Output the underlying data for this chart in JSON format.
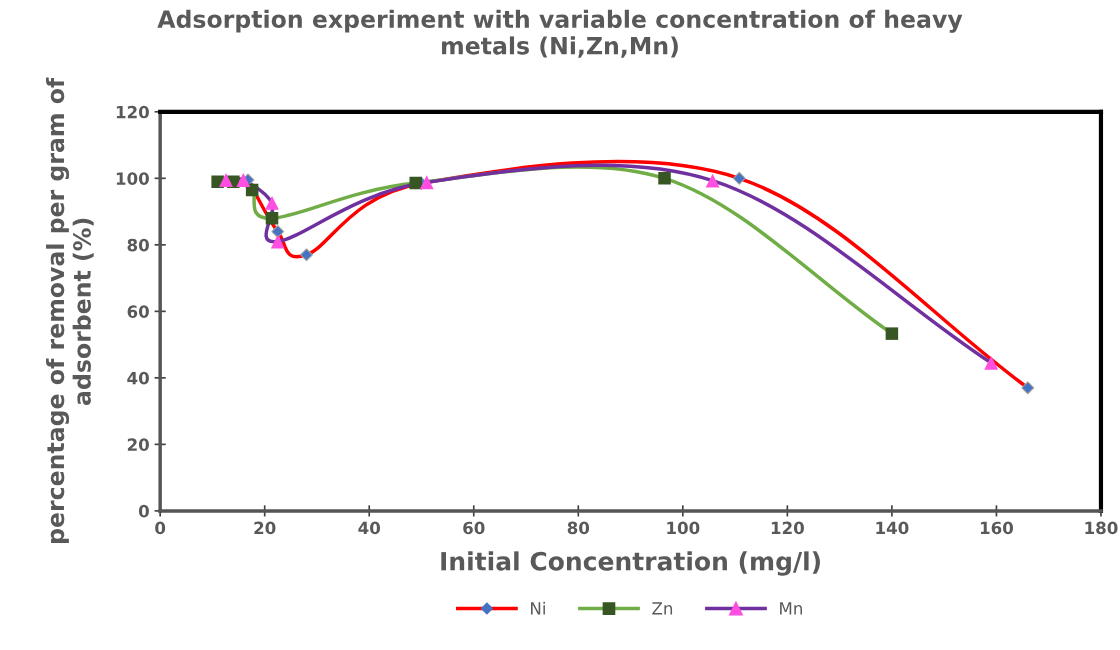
{
  "chart_data": {
    "type": "line",
    "title": "Adsorption experiment with variable concentration of heavy\nmetals (Ni,Zn,Mn)",
    "xlabel": "Initial Concentration (mg/l)",
    "ylabel": "percentage of removal per gram of\nadsorbent (%)",
    "xlim": [
      0,
      180
    ],
    "xticks": [
      0,
      20,
      40,
      60,
      80,
      100,
      120,
      140,
      160,
      180
    ],
    "ylim": [
      0,
      120
    ],
    "yticks": [
      0,
      20,
      40,
      60,
      80,
      100,
      120
    ],
    "grid": false,
    "legend": "bottom",
    "series": [
      {
        "name": "Ni",
        "color": "#ff0000",
        "marker": "diamond",
        "colors": [
          "#4472c4",
          "#4472c4",
          "#4472c4",
          "#4472c4",
          "#4472c4",
          "#4472c4"
        ],
        "x": [
          16.8,
          22.5,
          28,
          50,
          110.8,
          166
        ],
        "values": [
          99.5,
          84,
          77,
          98.5,
          100,
          37
        ]
      },
      {
        "name": "Zn",
        "color": "#70ad47",
        "marker": "square",
        "colors": [
          "#375623",
          "#375623",
          "#375623",
          "#375623",
          "#375623",
          "#375623",
          "#375623"
        ],
        "x": [
          11,
          14,
          17.6,
          21.4,
          48.9,
          96.5,
          140
        ],
        "values": [
          99,
          99,
          96.5,
          88,
          98.6,
          100,
          53.3
        ]
      },
      {
        "name": "Mn",
        "color": "#7030a0",
        "marker": "triangle",
        "colors": [
          "#ff4fe0",
          "#ff4fe0",
          "#ff4fe0",
          "#ff4fe0",
          "#ff4fe0",
          "#ff4fe0",
          "#ff4fe0"
        ],
        "x": [
          12.6,
          15.9,
          21.4,
          22.5,
          51,
          105.7,
          159
        ],
        "values": [
          99.5,
          99.5,
          92.6,
          81,
          98.8,
          99.3,
          44.5
        ]
      }
    ]
  }
}
